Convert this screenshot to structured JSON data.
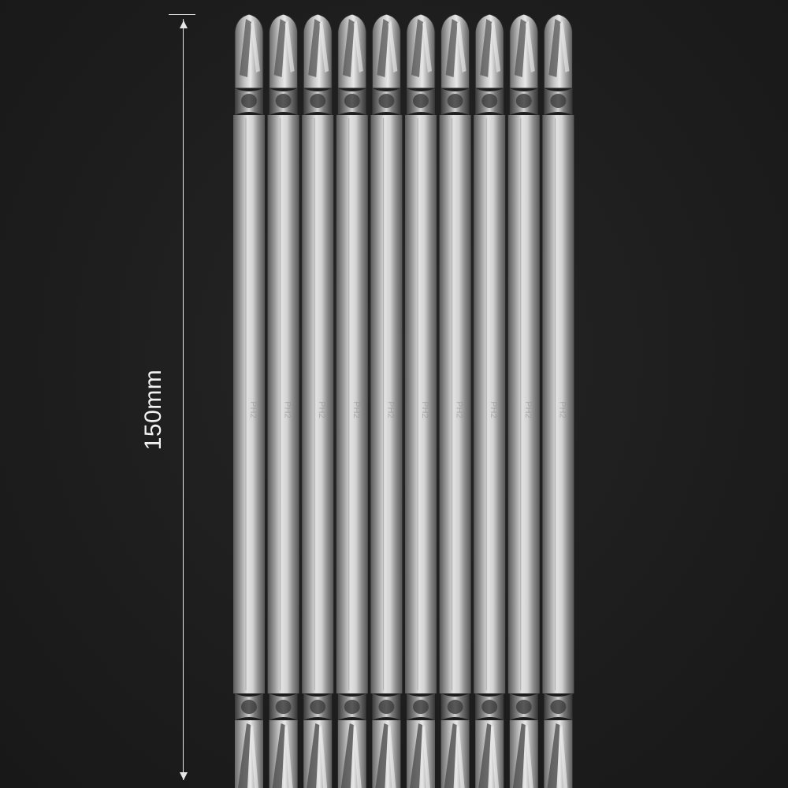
{
  "measurement": {
    "label": "150mm"
  },
  "bits": {
    "count": 10,
    "bit_marking": "PH2"
  },
  "colors": {
    "background": "#1c1c1c",
    "dimension_line": "#e6e6e6",
    "steel_light": "#dcdcdc",
    "steel_mid": "#a9a9a9",
    "steel_dark": "#6e6e6e"
  }
}
